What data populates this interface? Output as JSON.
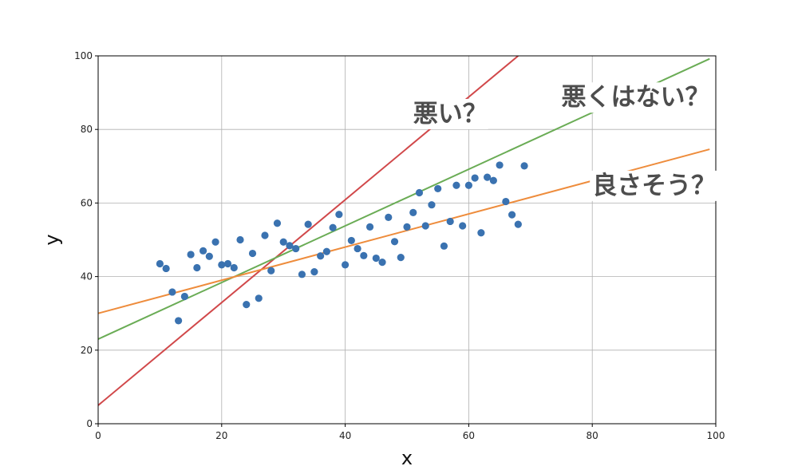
{
  "chart_data": {
    "type": "scatter",
    "title": "",
    "xlabel": "x",
    "ylabel": "y",
    "xlim": [
      0,
      100
    ],
    "ylim": [
      0,
      100
    ],
    "xticks": [
      0,
      20,
      40,
      60,
      80,
      100
    ],
    "yticks": [
      0,
      20,
      40,
      60,
      80,
      100
    ],
    "grid": true,
    "legend": "none",
    "point_color": "#3a72b0",
    "points": [
      [
        10,
        43.5
      ],
      [
        11,
        42.2
      ],
      [
        12,
        35.8
      ],
      [
        13,
        28
      ],
      [
        14,
        34.6
      ],
      [
        15,
        46
      ],
      [
        16,
        42.4
      ],
      [
        17,
        47
      ],
      [
        18,
        45.5
      ],
      [
        19,
        49.4
      ],
      [
        20,
        43.2
      ],
      [
        21,
        43.5
      ],
      [
        22,
        42.4
      ],
      [
        23,
        50
      ],
      [
        24,
        32.4
      ],
      [
        25,
        46.3
      ],
      [
        26,
        34.1
      ],
      [
        27,
        51.2
      ],
      [
        28,
        41.6
      ],
      [
        29,
        54.5
      ],
      [
        30,
        49.4
      ],
      [
        31,
        48.4
      ],
      [
        32,
        47.6
      ],
      [
        33,
        40.6
      ],
      [
        34,
        54.2
      ],
      [
        35,
        41.3
      ],
      [
        36,
        45.6
      ],
      [
        37,
        46.8
      ],
      [
        38,
        53.3
      ],
      [
        39,
        56.9
      ],
      [
        40,
        43.2
      ],
      [
        41,
        49.8
      ],
      [
        42,
        47.6
      ],
      [
        43,
        45.7
      ],
      [
        44,
        53.5
      ],
      [
        45,
        45
      ],
      [
        46,
        43.9
      ],
      [
        47,
        56.1
      ],
      [
        48,
        49.5
      ],
      [
        49,
        45.2
      ],
      [
        50,
        53.5
      ],
      [
        51,
        57.4
      ],
      [
        52,
        62.8
      ],
      [
        53,
        53.8
      ],
      [
        54,
        59.5
      ],
      [
        55,
        63.9
      ],
      [
        56,
        48.3
      ],
      [
        57,
        55
      ],
      [
        58,
        64.8
      ],
      [
        59,
        53.8
      ],
      [
        60,
        64.8
      ],
      [
        61,
        66.8
      ],
      [
        62,
        51.9
      ],
      [
        63,
        67
      ],
      [
        64,
        66.1
      ],
      [
        65,
        70.3
      ],
      [
        66,
        60.4
      ],
      [
        67,
        56.8
      ],
      [
        68,
        54.2
      ],
      [
        69,
        70.1
      ]
    ],
    "lines": [
      {
        "color": "#d1484a",
        "x": [
          0,
          68
        ],
        "y": [
          5,
          100
        ]
      },
      {
        "color": "#6aac55",
        "x": [
          0,
          99
        ],
        "y": [
          23,
          99.2
        ]
      },
      {
        "color": "#ee8c3c",
        "x": [
          0,
          99
        ],
        "y": [
          30,
          74.6
        ]
      }
    ],
    "annotations": [
      {
        "text": "悪い？",
        "x": 51,
        "y": 82
      },
      {
        "text": "悪くはない？",
        "x": 75,
        "y": 86.5
      },
      {
        "text": "良さそう？",
        "x": 80,
        "y": 62.5
      }
    ]
  }
}
